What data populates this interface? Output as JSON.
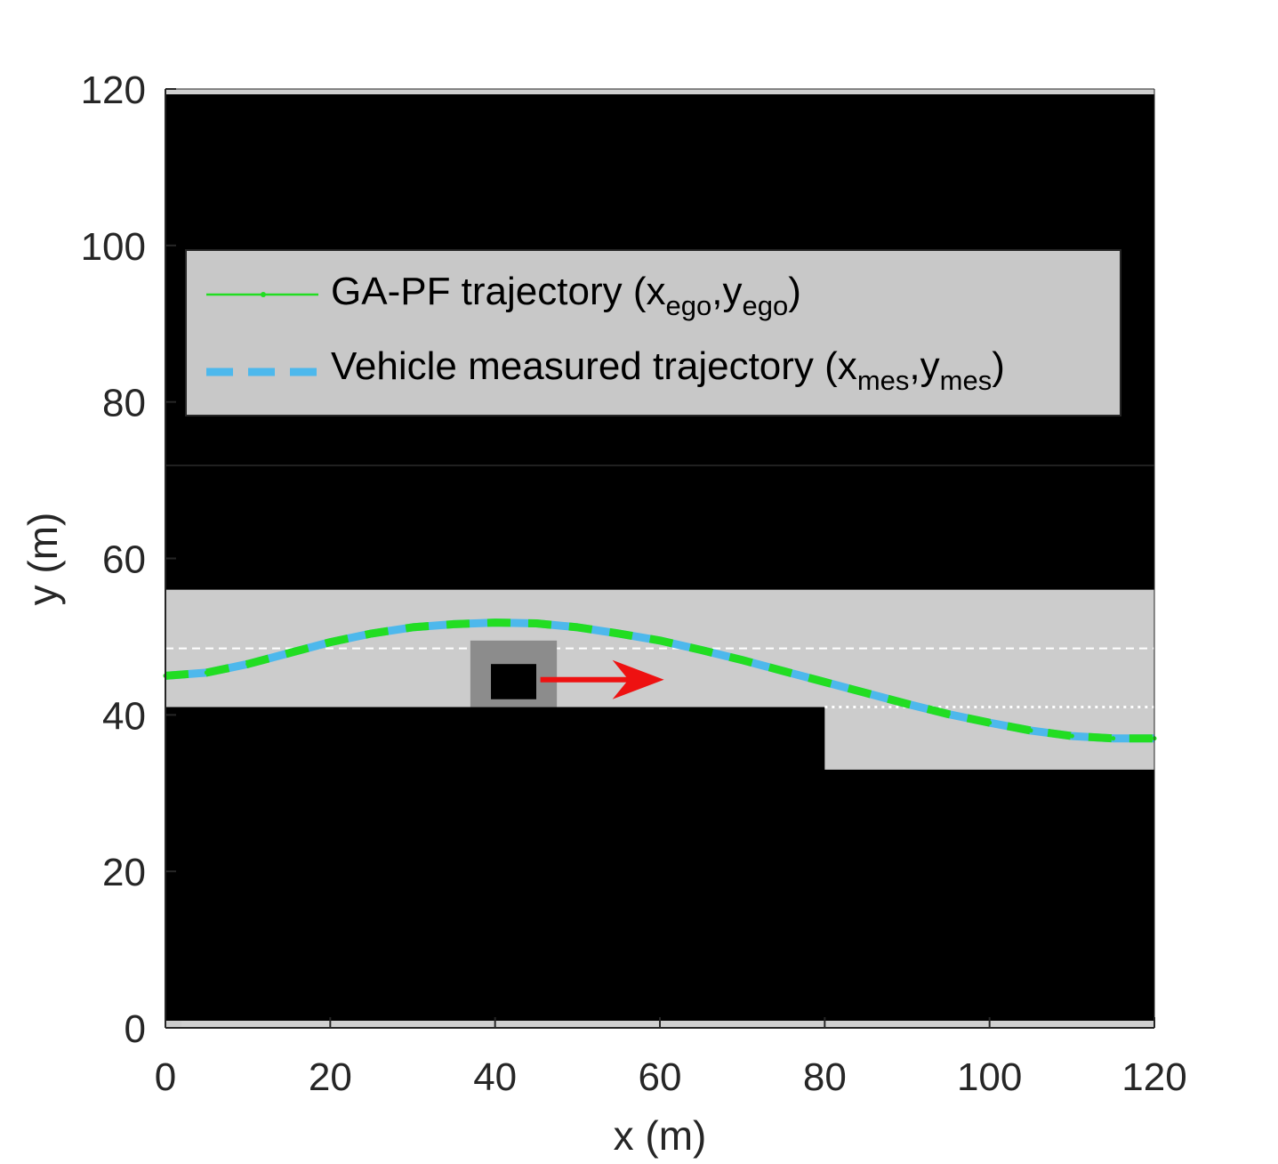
{
  "chart_data": {
    "type": "line",
    "title": "",
    "xlabel": "x (m)",
    "ylabel": "y (m)",
    "xlim": [
      0,
      120
    ],
    "ylim": [
      0,
      120
    ],
    "xticks": [
      "0",
      "20",
      "40",
      "60",
      "80",
      "100",
      "120"
    ],
    "yticks": [
      "0",
      "20",
      "40",
      "60",
      "80",
      "100",
      "120"
    ],
    "grid": false,
    "legend_position": "top",
    "colors": {
      "background_black": "#000000",
      "road_gray": "#cccccc",
      "legend_box": "#c8c8c8",
      "obstacle_zone": "#8c8c8c",
      "obstacle": "#000000",
      "lane_marking": "#ffffff",
      "ga_pf": "#22dd22",
      "measured": "#4db8ec",
      "velocity_arrow": "#ee1111"
    },
    "series": [
      {
        "name": "GA-PF trajectory (x_ego,y_ego)",
        "legend_main": "GA-PF trajectory (x",
        "legend_sub1": "ego",
        "legend_mid": ",y",
        "legend_sub2": "ego",
        "legend_end": ")",
        "style": "solid-with-markers",
        "color": "#22dd22",
        "x": [
          0,
          5,
          10,
          15,
          20,
          25,
          30,
          35,
          40,
          45,
          50,
          55,
          60,
          65,
          70,
          75,
          80,
          85,
          90,
          95,
          100,
          105,
          110,
          115,
          120
        ],
        "y": [
          45,
          45.4,
          46.5,
          47.9,
          49.3,
          50.4,
          51.2,
          51.6,
          51.8,
          51.7,
          51.2,
          50.4,
          49.5,
          48.3,
          47.0,
          45.6,
          44.2,
          42.8,
          41.4,
          40.1,
          39.0,
          38.0,
          37.3,
          37.0,
          37.0
        ]
      },
      {
        "name": "Vehicle measured trajectory (x_mes,y_mes)",
        "legend_main": "Vehicle measured trajectory (x",
        "legend_sub1": "mes",
        "legend_mid": ",y",
        "legend_sub2": "mes",
        "legend_end": ")",
        "style": "dashed",
        "color": "#4db8ec",
        "x": [
          0,
          5,
          10,
          15,
          20,
          25,
          30,
          35,
          40,
          45,
          50,
          55,
          60,
          65,
          70,
          75,
          80,
          85,
          90,
          95,
          100,
          105,
          110,
          115,
          120
        ],
        "y": [
          45,
          45.4,
          46.5,
          47.9,
          49.3,
          50.4,
          51.2,
          51.6,
          51.8,
          51.7,
          51.2,
          50.4,
          49.5,
          48.3,
          47.0,
          45.6,
          44.2,
          42.8,
          41.4,
          40.1,
          39.0,
          38.0,
          37.3,
          37.0,
          37.0
        ]
      }
    ],
    "scene": {
      "road_main": {
        "x": [
          0,
          120
        ],
        "y": [
          41,
          56
        ]
      },
      "road_extension": {
        "x": [
          80,
          120
        ],
        "y": [
          33,
          41
        ]
      },
      "lane_divider_dashed": {
        "x": [
          0,
          120
        ],
        "y": 48.5
      },
      "lane_divider_dotted": {
        "x": [
          80,
          120
        ],
        "y": 41
      },
      "obstacle_zone": {
        "x": [
          37,
          47.5
        ],
        "y": [
          41,
          49.5
        ]
      },
      "obstacle": {
        "x": [
          39.5,
          45
        ],
        "y": [
          42,
          46.5
        ]
      },
      "velocity_arrow": {
        "from": [
          45.5,
          44.5
        ],
        "to": [
          60.5,
          44.5
        ]
      }
    }
  }
}
